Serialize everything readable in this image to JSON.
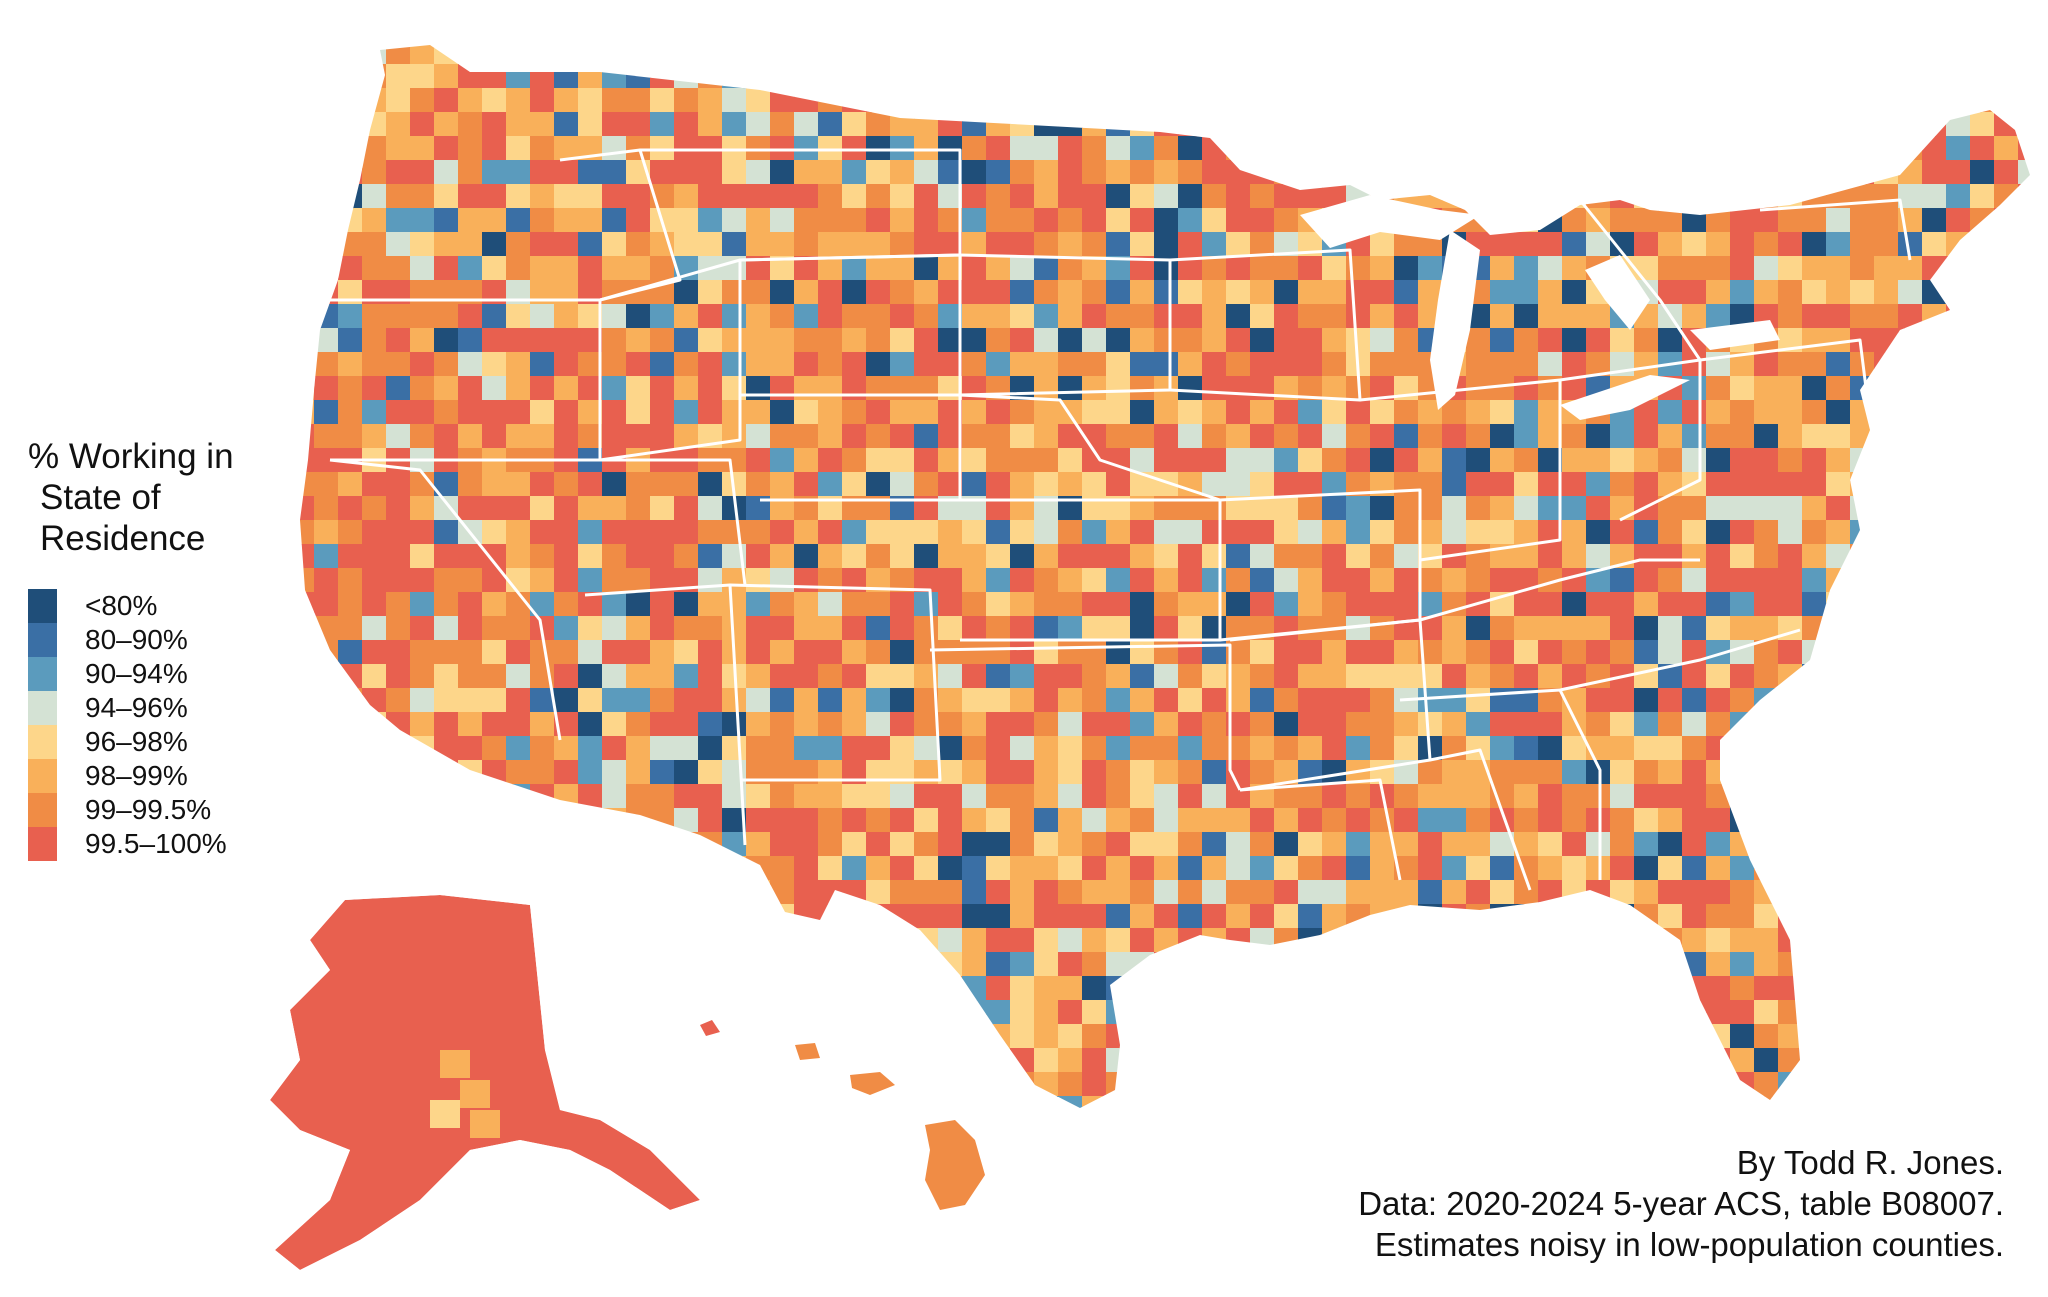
{
  "legend": {
    "title_lines": [
      "% Working in",
      "State of",
      "Residence"
    ],
    "items": [
      {
        "label": "<80%",
        "color": "#1f4e79"
      },
      {
        "label": "80–90%",
        "color": "#3a6fa5"
      },
      {
        "label": "90–94%",
        "color": "#5b9bbd"
      },
      {
        "label": "94–96%",
        "color": "#d4e2d4"
      },
      {
        "label": "96–98%",
        "color": "#fdd68a"
      },
      {
        "label": "98–99%",
        "color": "#f9b05a"
      },
      {
        "label": "99–99.5%",
        "color": "#f08c45"
      },
      {
        "label": "99.5–100%",
        "color": "#e8604f"
      }
    ]
  },
  "credits": [
    "By Todd R. Jones.",
    "Data: 2020-2024 5-year ACS, table B08007.",
    "Estimates noisy in low-population counties."
  ]
}
